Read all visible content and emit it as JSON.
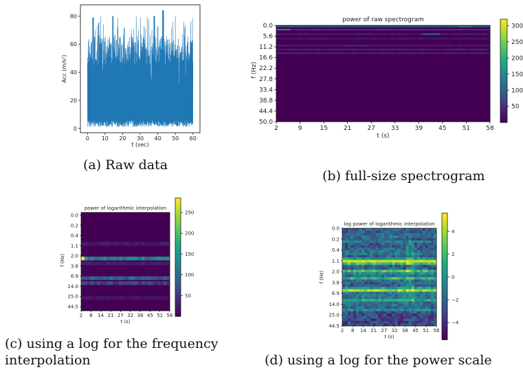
{
  "charts": [
    {
      "type": "line",
      "title": "",
      "xlabel": "t (sec)",
      "ylabel": "Acc (m/s²)",
      "xlim": [
        -4,
        64
      ],
      "ylim": [
        -3,
        88
      ],
      "xticks": [
        0,
        10,
        20,
        30,
        40,
        50,
        60
      ],
      "yticks": [
        0,
        20,
        40,
        60,
        80
      ],
      "series_color": "#1f77b4",
      "description": "Dense oscillating acceleration signal; lower envelope ~1-4, upper envelope mostly 55-80, peak ~84 near t=43"
    },
    {
      "type": "heatmap",
      "title": "power of raw spectrogram",
      "xlabel": "t (s)",
      "ylabel": "f (Hz)",
      "xticks": [
        "2",
        "9",
        "15",
        "21",
        "27",
        "33",
        "39",
        "45",
        "51",
        "58"
      ],
      "yticks": [
        "0.0",
        "5.6",
        "11.2",
        "16.6",
        "22.2",
        "27.8",
        "33.4",
        "38.8",
        "44.4",
        "50.0"
      ],
      "colorbar_ticks": [
        50,
        100,
        150,
        200,
        250,
        300
      ],
      "colorbar_range": [
        0,
        320
      ],
      "colormap": "viridis",
      "bright_bands_freq": [
        0.6,
        2.2,
        4.5,
        6.9,
        10.5,
        12.5,
        14.4
      ]
    },
    {
      "type": "heatmap",
      "title": "power of logarithmic interpolation",
      "xlabel": "t (s)",
      "ylabel": "f (Hz)",
      "xticks": [
        "2",
        "8",
        "14",
        "21",
        "27",
        "32",
        "38",
        "45",
        "51",
        "56"
      ],
      "yticks": [
        "0.0",
        "0.2",
        "0.4",
        "1.1",
        "2.0",
        "3.8",
        "6.9",
        "14.0",
        "25.0",
        "44.5"
      ],
      "colorbar_ticks": [
        50,
        100,
        150,
        200,
        250
      ],
      "colorbar_range": [
        0,
        285
      ],
      "colormap": "viridis",
      "bright_rows": [
        {
          "row": 9,
          "level": 0.45
        },
        {
          "row": 10,
          "level": 0.12
        },
        {
          "row": 13,
          "level": 0.35
        },
        {
          "row": 14,
          "level": 0.22
        },
        {
          "row": 6,
          "level": 0.1
        },
        {
          "row": 17,
          "level": 0.08
        }
      ],
      "peak": {
        "row": 9,
        "col": 0
      }
    },
    {
      "type": "heatmap",
      "title": "log power of logarithmic interpolation",
      "xlabel": "t (s)",
      "ylabel": "f (Hz)",
      "xticks": [
        "2",
        "8",
        "14",
        "21",
        "27",
        "32",
        "38",
        "45",
        "51",
        "56"
      ],
      "yticks": [
        "0.0",
        "0.2",
        "0.4",
        "1.1",
        "2.0",
        "3.8",
        "6.9",
        "14.0",
        "25.0",
        "44.5"
      ],
      "colorbar_ticks": [
        "4",
        "2",
        "0",
        "−2",
        "−4"
      ],
      "colorbar_values": [
        4,
        2,
        0,
        -2,
        -4
      ],
      "colorbar_range": [
        -5.5,
        5.6
      ],
      "colormap": "viridis"
    }
  ],
  "captions": {
    "a": "(a) Raw data",
    "b": "(b) full-size spectrogram",
    "c_line1": "(c)  using  a  log  for  the  frequency",
    "c_line2": "interpolation",
    "d": "(d) using a log for the power scale"
  }
}
